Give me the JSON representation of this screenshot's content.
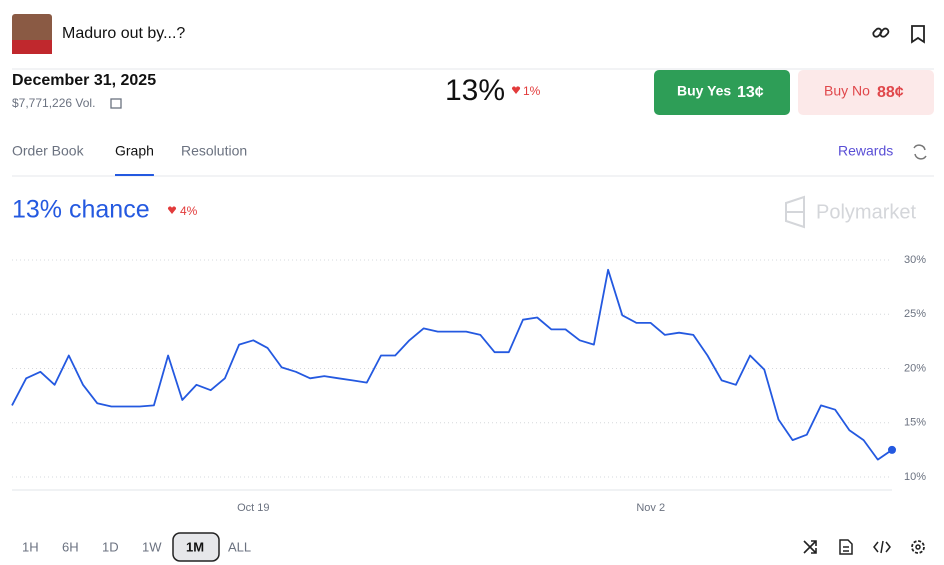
{
  "header": {
    "title": "Maduro out by...?",
    "date": "December 31, 2025",
    "volume": "$7,771,226 Vol.",
    "price": "13%",
    "change": "1%",
    "buy_yes": "Buy Yes",
    "buy_yes_price": "13¢",
    "buy_no": "Buy No",
    "buy_no_price": "88¢"
  },
  "tabs": {
    "items": [
      "Order Book",
      "Graph",
      "Resolution"
    ],
    "active": 1,
    "rewards": "Rewards"
  },
  "chart_data": {
    "type": "line",
    "title": "13% chance",
    "change": "4%",
    "watermark": "Polymarket",
    "categories": [
      null,
      null,
      null,
      null,
      null,
      null,
      null,
      null,
      null,
      null,
      null,
      null,
      null,
      null,
      null,
      null,
      null,
      "Oct 19",
      null,
      null,
      null,
      null,
      null,
      null,
      null,
      null,
      null,
      null,
      null,
      null,
      null,
      null,
      null,
      null,
      null,
      null,
      null,
      null,
      null,
      null,
      null,
      null,
      null,
      null,
      null,
      "Nov 2",
      null,
      null,
      null,
      null,
      null,
      null,
      null,
      null,
      null,
      null,
      null,
      null,
      null,
      null,
      null,
      null,
      null
    ],
    "series": [
      {
        "name": "Yes",
        "color": "#2459e0",
        "values": [
          16.6,
          19.1,
          19.7,
          18.5,
          21.2,
          18.5,
          16.8,
          16.5,
          16.5,
          16.5,
          16.6,
          21.2,
          17.1,
          18.5,
          18.0,
          19.1,
          22.2,
          22.6,
          21.9,
          20.1,
          19.7,
          19.1,
          19.3,
          19.1,
          18.9,
          18.7,
          21.2,
          21.2,
          22.6,
          23.7,
          23.4,
          23.4,
          23.4,
          23.1,
          21.5,
          21.5,
          24.5,
          24.7,
          23.6,
          23.6,
          22.6,
          22.2,
          29.1,
          24.9,
          24.2,
          24.2,
          23.1,
          23.3,
          23.1,
          21.2,
          18.9,
          18.5,
          21.2,
          19.9,
          15.3,
          13.4,
          13.9,
          16.6,
          16.2,
          14.3,
          13.4,
          11.6,
          12.5
        ]
      }
    ],
    "ylim": [
      10,
      30
    ],
    "yticks": [
      {
        "value": 10,
        "label": "10%"
      },
      {
        "value": 15,
        "label": "15%"
      },
      {
        "value": 20,
        "label": "20%"
      },
      {
        "value": 25,
        "label": "25%"
      },
      {
        "value": 30,
        "label": "30%"
      }
    ],
    "grid": true
  },
  "ranges": {
    "items": [
      "1H",
      "6H",
      "1D",
      "1W",
      "1M",
      "ALL"
    ],
    "active": 4
  }
}
